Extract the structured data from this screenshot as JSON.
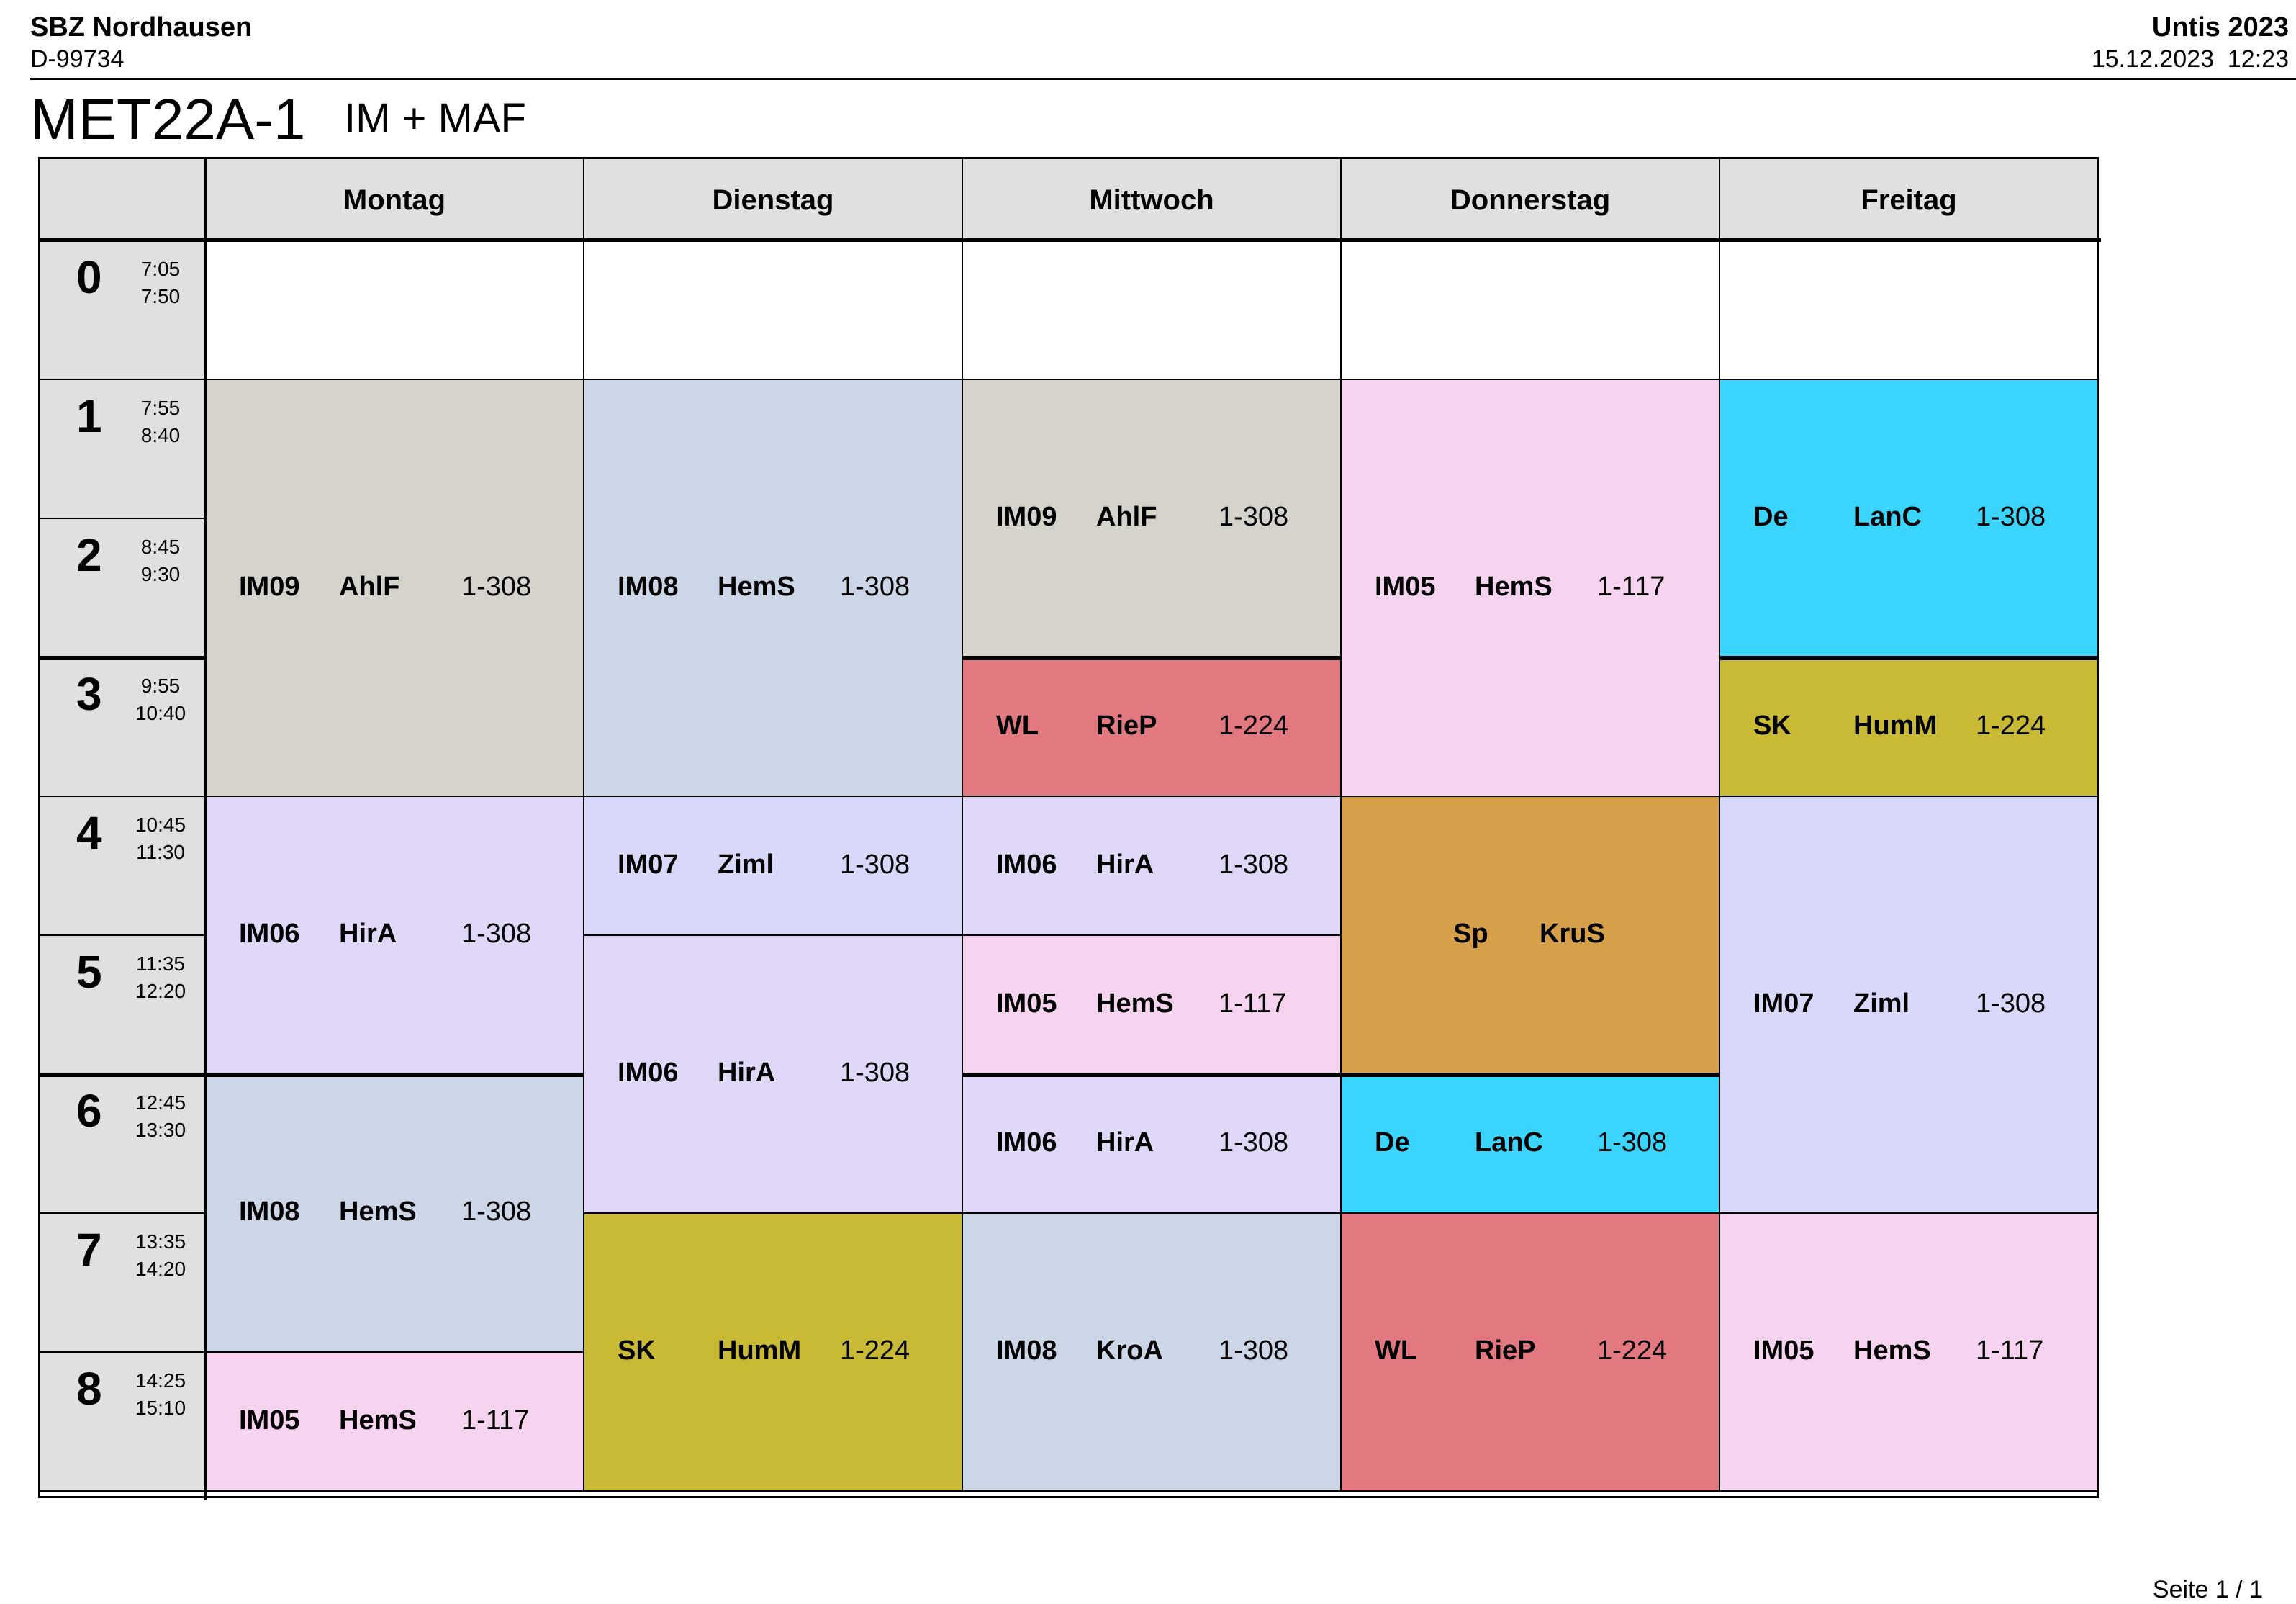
{
  "header": {
    "school": "SBZ Nordhausen",
    "postcode": "D-99734",
    "software": "Untis 2023",
    "datetime": "15.12.2023  12:23"
  },
  "title": {
    "class": "MET22A-1",
    "subtitle": "IM + MAF"
  },
  "days": [
    "Montag",
    "Dienstag",
    "Mittwoch",
    "Donnerstag",
    "Freitag"
  ],
  "periods": [
    {
      "num": "0",
      "start": "7:05",
      "end": "7:50"
    },
    {
      "num": "1",
      "start": "7:55",
      "end": "8:40"
    },
    {
      "num": "2",
      "start": "8:45",
      "end": "9:30"
    },
    {
      "num": "3",
      "start": "9:55",
      "end": "10:40"
    },
    {
      "num": "4",
      "start": "10:45",
      "end": "11:30"
    },
    {
      "num": "5",
      "start": "11:35",
      "end": "12:20"
    },
    {
      "num": "6",
      "start": "12:45",
      "end": "13:30"
    },
    {
      "num": "7",
      "start": "13:35",
      "end": "14:20"
    },
    {
      "num": "8",
      "start": "14:25",
      "end": "15:10"
    }
  ],
  "colors": {
    "gray": "#d6d3cd",
    "blue": "#cdd6e6",
    "pink": "#f6d3ef",
    "cyan": "#3bd4fc",
    "red": "#e27880",
    "olive": "#c8ba35",
    "lavender": "#e1d8f9",
    "periwinkle": "#d8d8fb",
    "orange": "#d6a04a"
  },
  "lessons": [
    {
      "day": 0,
      "from": 1,
      "to": 3,
      "subject": "IM09",
      "teacher": "AhlF",
      "room": "1-308",
      "color": "gray"
    },
    {
      "day": 0,
      "from": 4,
      "to": 5,
      "subject": "IM06",
      "teacher": "HirA",
      "room": "1-308",
      "color": "lavender"
    },
    {
      "day": 0,
      "from": 6,
      "to": 7,
      "subject": "IM08",
      "teacher": "HemS",
      "room": "1-308",
      "color": "blue"
    },
    {
      "day": 0,
      "from": 8,
      "to": 8,
      "subject": "IM05",
      "teacher": "HemS",
      "room": "1-117",
      "color": "pink"
    },
    {
      "day": 1,
      "from": 1,
      "to": 3,
      "subject": "IM08",
      "teacher": "HemS",
      "room": "1-308",
      "color": "blue"
    },
    {
      "day": 1,
      "from": 4,
      "to": 4,
      "subject": "IM07",
      "teacher": "Ziml",
      "room": "1-308",
      "color": "periwinkle"
    },
    {
      "day": 1,
      "from": 5,
      "to": 6,
      "subject": "IM06",
      "teacher": "HirA",
      "room": "1-308",
      "color": "lavender"
    },
    {
      "day": 1,
      "from": 7,
      "to": 8,
      "subject": "SK",
      "teacher": "HumM",
      "room": "1-224",
      "color": "olive"
    },
    {
      "day": 2,
      "from": 1,
      "to": 2,
      "subject": "IM09",
      "teacher": "AhlF",
      "room": "1-308",
      "color": "gray"
    },
    {
      "day": 2,
      "from": 3,
      "to": 3,
      "subject": "WL",
      "teacher": "RieP",
      "room": "1-224",
      "color": "red"
    },
    {
      "day": 2,
      "from": 4,
      "to": 4,
      "subject": "IM06",
      "teacher": "HirA",
      "room": "1-308",
      "color": "lavender"
    },
    {
      "day": 2,
      "from": 5,
      "to": 5,
      "subject": "IM05",
      "teacher": "HemS",
      "room": "1-117",
      "color": "pink"
    },
    {
      "day": 2,
      "from": 6,
      "to": 6,
      "subject": "IM06",
      "teacher": "HirA",
      "room": "1-308",
      "color": "lavender"
    },
    {
      "day": 2,
      "from": 7,
      "to": 8,
      "subject": "IM08",
      "teacher": "KroA",
      "room": "1-308",
      "color": "blue"
    },
    {
      "day": 3,
      "from": 1,
      "to": 3,
      "subject": "IM05",
      "teacher": "HemS",
      "room": "1-117",
      "color": "pink"
    },
    {
      "day": 3,
      "from": 4,
      "to": 5,
      "subject": "Sp",
      "teacher": "KruS",
      "room": "",
      "color": "orange"
    },
    {
      "day": 3,
      "from": 6,
      "to": 6,
      "subject": "De",
      "teacher": "LanC",
      "room": "1-308",
      "color": "cyan"
    },
    {
      "day": 3,
      "from": 7,
      "to": 8,
      "subject": "WL",
      "teacher": "RieP",
      "room": "1-224",
      "color": "red"
    },
    {
      "day": 4,
      "from": 1,
      "to": 2,
      "subject": "De",
      "teacher": "LanC",
      "room": "1-308",
      "color": "cyan"
    },
    {
      "day": 4,
      "from": 3,
      "to": 3,
      "subject": "SK",
      "teacher": "HumM",
      "room": "1-224",
      "color": "olive"
    },
    {
      "day": 4,
      "from": 4,
      "to": 6,
      "subject": "IM07",
      "teacher": "Ziml",
      "room": "1-308",
      "color": "periwinkle"
    },
    {
      "day": 4,
      "from": 7,
      "to": 8,
      "subject": "IM05",
      "teacher": "HemS",
      "room": "1-117",
      "color": "pink"
    }
  ],
  "footer": {
    "page": "Seite 1 / 1"
  }
}
